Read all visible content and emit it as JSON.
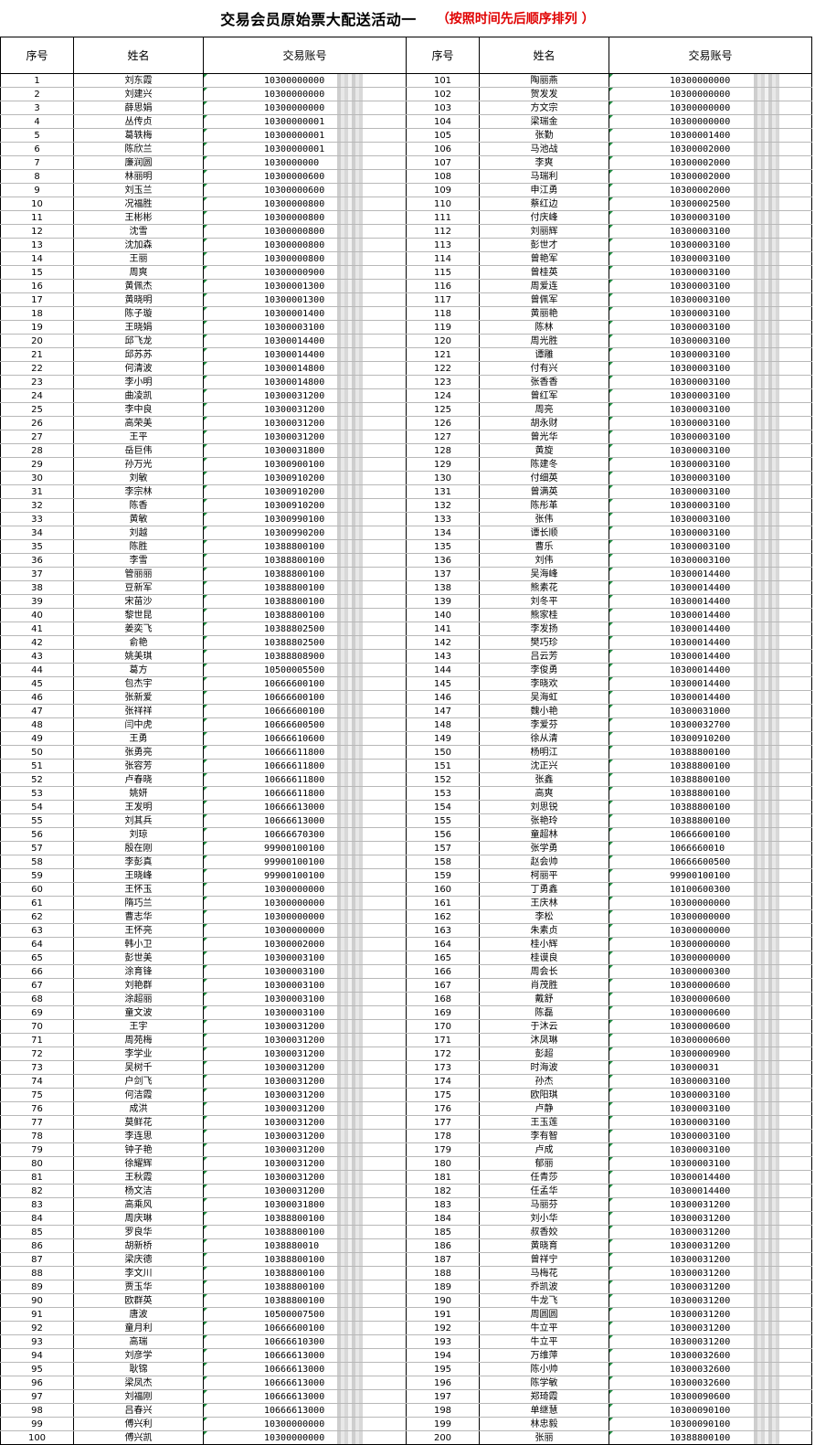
{
  "title": "交易会员原始票大配送活动一",
  "subtitle": "（按照时间先后顺序排列 ）",
  "headers": [
    "序号",
    "姓名",
    "交易账号",
    "序号",
    "姓名",
    "交易账号"
  ],
  "left_names": [
    "刘东霞",
    "刘建兴",
    "薛思娟",
    "丛传贞",
    "葛轶梅",
    "陈欣兰",
    "廉润圆",
    "林丽明",
    "刘玉兰",
    "况福胜",
    "王彬彬",
    "沈雪",
    "沈加森",
    "王丽",
    "周爽",
    "黄佩杰",
    "黄晓明",
    "陈子璇",
    "王晓娟",
    "邱飞龙",
    "邱苏苏",
    "何清波",
    "李小明",
    "曲凌凯",
    "李中良",
    "高荣美",
    "王平",
    "岳巨伟",
    "孙万光",
    "刘敏",
    "李宗林",
    "陈香",
    "黄敏",
    "刘越",
    "陈胜",
    "李雪",
    "管丽丽",
    "豆新军",
    "宋苗沙",
    "黎世昆",
    "姜奕飞",
    "俞艳",
    "姚美琪",
    "葛方",
    "包杰宇",
    "张新爱",
    "张祥祥",
    "闫中虎",
    "王勇",
    "张勇亮",
    "张容芳",
    "卢春晓",
    "姚妍",
    "王发明",
    "刘其兵",
    "刘琼",
    "殷在刚",
    "李彭真",
    "王晓峰",
    "王怀玉",
    "隋巧兰",
    "曹志华",
    "王怀亮",
    "韩小卫",
    "彭世美",
    "涂育锋",
    "刘艳群",
    "涂超丽",
    "童文波",
    "王宇",
    "周苑梅",
    "李学业",
    "吴树千",
    "户剑飞",
    "何洁霞",
    "成洪",
    "莫鲜花",
    "李连思",
    "钟子艳",
    "徐耀辉",
    "王秋霞",
    "杨文洁",
    "高乘风",
    "周庆琳",
    "罗良华",
    "胡新桥",
    "梁庆德",
    "李文川",
    "贾玉华",
    "欧群英",
    "唐波",
    "童月利",
    "高瑞",
    "刘彦学",
    "耿锦",
    "梁凤杰",
    "刘福刚",
    "吕春兴",
    "傅兴利",
    "傅兴凯"
  ],
  "left_accounts": [
    "10300000000",
    "10300000000",
    "10300000000",
    "10300000001",
    "10300000001",
    "10300000001",
    "1030000000",
    "10300000600",
    "10300000600",
    "10300000800",
    "10300000800",
    "10300000800",
    "10300000800",
    "10300000800",
    "10300000900",
    "10300001300",
    "10300001300",
    "10300001400",
    "10300003100",
    "10300014400",
    "10300014400",
    "10300014800",
    "10300014800",
    "10300031200",
    "10300031200",
    "10300031200",
    "10300031200",
    "10300031800",
    "10300900100",
    "10300910200",
    "10300910200",
    "10300910200",
    "10300990100",
    "10300990200",
    "10388800100",
    "10388800100",
    "10388800100",
    "10388800100",
    "10388800100",
    "10388800100",
    "10388802500",
    "10388802500",
    "10388808900",
    "10500005500",
    "10666600100",
    "10666600100",
    "10666600100",
    "10666600500",
    "10666610600",
    "10666611800",
    "10666611800",
    "10666611800",
    "10666611800",
    "10666613000",
    "10666613000",
    "10666670300",
    "99900100100",
    "99900100100",
    "99900100100",
    "10300000000",
    "10300000000",
    "10300000000",
    "10300000000",
    "10300002000",
    "10300003100",
    "10300003100",
    "10300003100",
    "10300003100",
    "10300003100",
    "10300031200",
    "10300031200",
    "10300031200",
    "10300031200",
    "10300031200",
    "10300031200",
    "10300031200",
    "10300031200",
    "10300031200",
    "10300031200",
    "10300031200",
    "10300031200",
    "10300031200",
    "10300031800",
    "10388800100",
    "10388800100",
    "1038880010",
    "10388800100",
    "10388800100",
    "10388800100",
    "10388800100",
    "10500007500",
    "10666600100",
    "10666610300",
    "10666613000",
    "10666613000",
    "10666613000",
    "10666613000",
    "10666613000",
    "10300000000",
    "10300000000"
  ],
  "right_names": [
    "陶丽燕",
    "贺发发",
    "方文宗",
    "梁瑞金",
    "张勤",
    "马池战",
    "李爽",
    "马瑞利",
    "申江勇",
    "蔡红边",
    "付庆峰",
    "刘丽辉",
    "彭世才",
    "曾艳军",
    "曾桂英",
    "周爱连",
    "曾佩军",
    "黄丽艳",
    "陈林",
    "周光胜",
    "谭雕",
    "付有兴",
    "张香香",
    "曾红军",
    "周亮",
    "胡永财",
    "曾光华",
    "黄旋",
    "陈建冬",
    "付细英",
    "曾满英",
    "陈彤革",
    "张伟",
    "谭长顺",
    "曹乐",
    "刘伟",
    "吴海峰",
    "熊素花",
    "刘冬平",
    "熊家桂",
    "李发扬",
    "樊巧珍",
    "吕云芳",
    "李俊勇",
    "李晓欢",
    "吴海虹",
    "魏小艳",
    "李爱芬",
    "徐从清",
    "杨明江",
    "沈正兴",
    "张鑫",
    "高爽",
    "刘思锐",
    "张艳玲",
    "童超林",
    "张学勇",
    "赵会帅",
    "柯丽平",
    "丁勇鑫",
    "王庆林",
    "李松",
    "朱素贞",
    "桂小辉",
    "桂谟良",
    "周会长",
    "肖茂胜",
    "戴舒",
    "陈磊",
    "于沐云",
    "沐凤琳",
    "彭超",
    "时海波",
    "孙杰",
    "欧阳琪",
    "卢静",
    "王玉莲",
    "李有智",
    "卢成",
    "郁丽",
    "任青莎",
    "任孟华",
    "马丽芬",
    "刘小华",
    "叔香姣",
    "黄晓育",
    "曾祥宁",
    "马梅花",
    "乔凯波",
    "牛龙飞",
    "周圆圆",
    "牛立平",
    "牛立平",
    "万维萍",
    "陈小帅",
    "陈学敏",
    "郑琦霞",
    "单继慧",
    "林忠毅",
    "张丽"
  ],
  "right_accounts": [
    "10300000000",
    "10300000000",
    "10300000000",
    "10300000000",
    "10300001400",
    "10300002000",
    "10300002000",
    "10300002000",
    "10300002000",
    "10300002500",
    "10300003100",
    "10300003100",
    "10300003100",
    "10300003100",
    "10300003100",
    "10300003100",
    "10300003100",
    "10300003100",
    "10300003100",
    "10300003100",
    "10300003100",
    "10300003100",
    "10300003100",
    "10300003100",
    "10300003100",
    "10300003100",
    "10300003100",
    "10300003100",
    "10300003100",
    "10300003100",
    "10300003100",
    "10300003100",
    "10300003100",
    "10300003100",
    "10300003100",
    "10300003100",
    "10300014400",
    "10300014400",
    "10300014400",
    "10300014400",
    "10300014400",
    "10300014400",
    "10300014400",
    "10300014400",
    "10300014400",
    "10300014400",
    "10300031000",
    "10300032700",
    "10300910200",
    "10388800100",
    "10388800100",
    "10388800100",
    "10388800100",
    "10388800100",
    "10388800100",
    "10666600100",
    "1066660010",
    "10666600500",
    "99900100100",
    "10100600300",
    "10300000000",
    "10300000000",
    "10300000000",
    "10300000000",
    "10300000000",
    "10300000300",
    "10300000600",
    "10300000600",
    "10300000600",
    "10300000600",
    "10300000600",
    "10300000900",
    "103000031",
    "10300003100",
    "10300003100",
    "10300003100",
    "10300003100",
    "10300003100",
    "10300003100",
    "10300003100",
    "10300014400",
    "10300014400",
    "10300031200",
    "10300031200",
    "10300031200",
    "10300031200",
    "10300031200",
    "10300031200",
    "10300031200",
    "10300031200",
    "10300031200",
    "10300031200",
    "10300031200",
    "10300032600",
    "10300032600",
    "10300032600",
    "10300090600",
    "10300090100",
    "10300090100",
    "10388800100"
  ]
}
